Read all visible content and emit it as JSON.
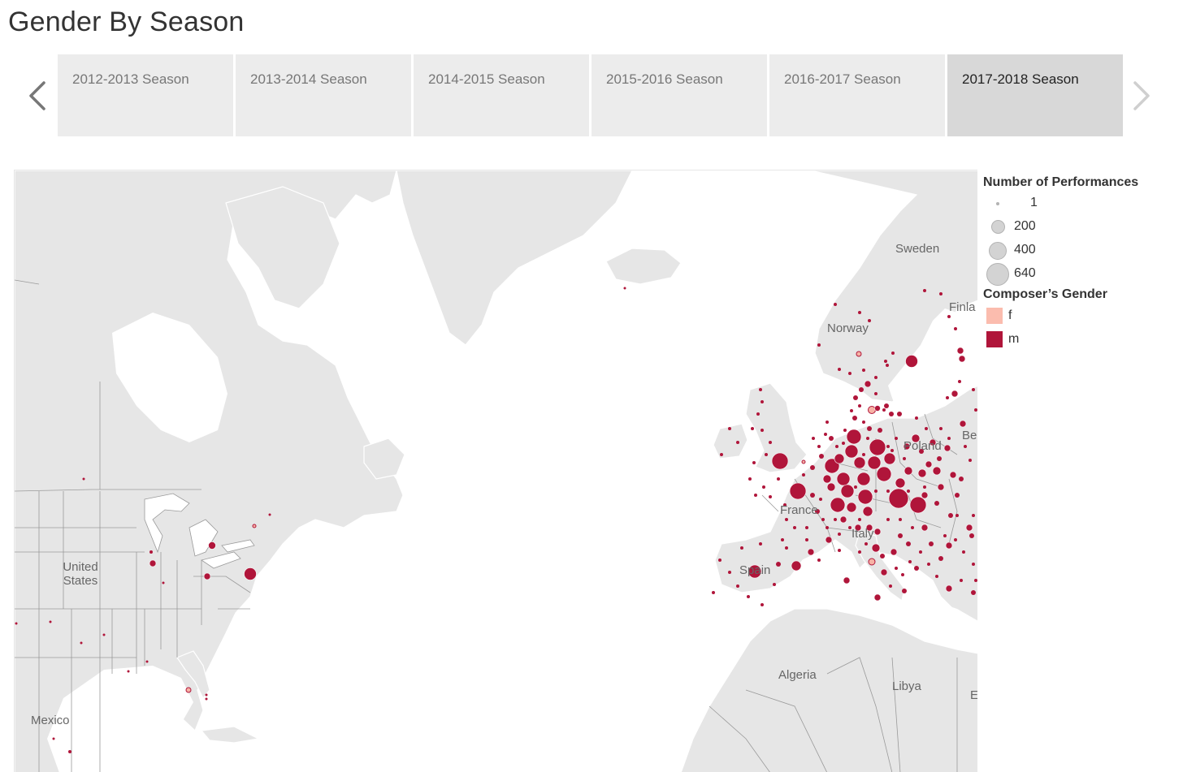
{
  "title": "Gender By Season",
  "seasons": {
    "prev_icon": "chevron-left-icon",
    "next_icon": "chevron-right-icon",
    "tabs": [
      {
        "label": "2012-2013 Season",
        "active": false
      },
      {
        "label": "2013-2014 Season",
        "active": false
      },
      {
        "label": "2014-2015 Season",
        "active": false
      },
      {
        "label": "2015-2016 Season",
        "active": false
      },
      {
        "label": "2016-2017 Season",
        "active": false
      },
      {
        "label": "2017-2018 Season",
        "active": true
      }
    ]
  },
  "map": {
    "labels": {
      "sweden": "Sweden",
      "finland": "Finla",
      "norway": "Norway",
      "poland": "Poland",
      "belarus": "Be",
      "france": "France",
      "italy": "Italy",
      "spain": "Spain",
      "algeria": "Algeria",
      "libya": "Libya",
      "egypt": "E",
      "united_states": "United States",
      "mexico": "Mexico"
    },
    "colors": {
      "land": "#e6e6e6",
      "water": "#ffffff",
      "border": "#ffffff",
      "state_border": "#9a9a9a",
      "marker_m": "#b0153a",
      "marker_f": "#f7b2a5"
    }
  },
  "legend": {
    "size_title": "Number of Performances",
    "sizes": [
      {
        "label": "1",
        "value": 1
      },
      {
        "label": "200",
        "value": 200
      },
      {
        "label": "400",
        "value": 400
      },
      {
        "label": "640",
        "value": 640
      }
    ],
    "color_title": "Composer’s Gender",
    "genders": [
      {
        "label": "f",
        "color": "#fbbcae"
      },
      {
        "label": "m",
        "color": "#b0153a"
      }
    ]
  }
}
